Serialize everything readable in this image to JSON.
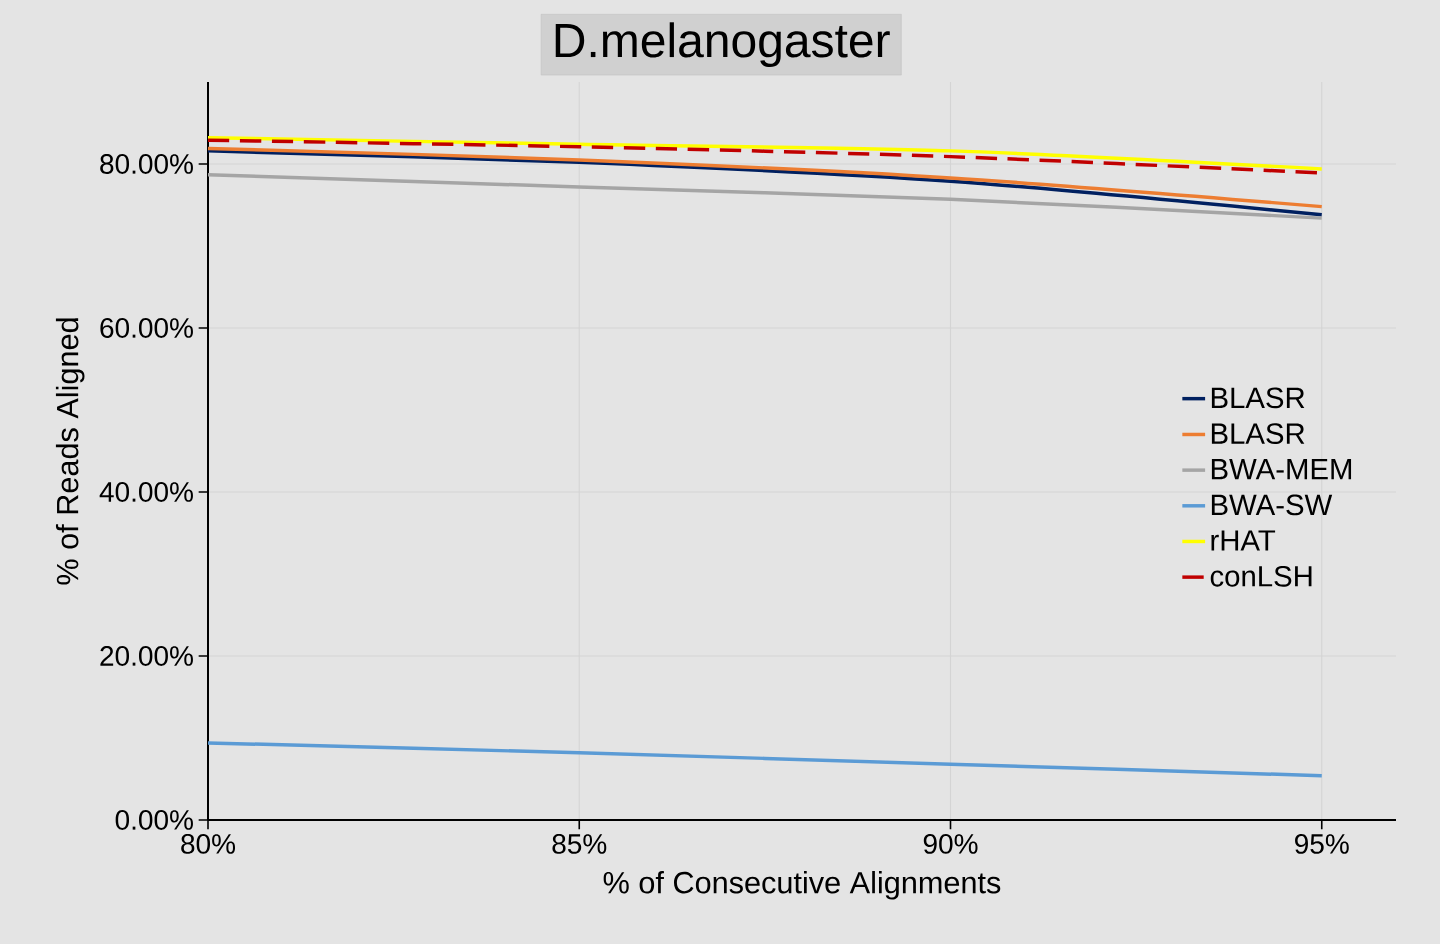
{
  "chart_data": {
    "type": "line",
    "title": "D.melanogaster",
    "xlabel": "% of Consecutive Alignments",
    "ylabel": "% of Reads Aligned",
    "x": [
      80,
      85,
      90,
      95
    ],
    "series": [
      {
        "name": "BLASR",
        "color": "#002060",
        "values": [
          81.6,
          80.2,
          77.9,
          73.8
        ]
      },
      {
        "name": "BLASR",
        "color": "#ed7d31",
        "values": [
          81.9,
          80.5,
          78.3,
          74.8
        ]
      },
      {
        "name": "BWA-MEM",
        "color": "#a5a5a5",
        "values": [
          78.7,
          77.2,
          75.7,
          73.4
        ]
      },
      {
        "name": "BWA-SW",
        "color": "#5b9bd5",
        "values": [
          9.4,
          8.2,
          6.8,
          5.4
        ]
      },
      {
        "name": "rHAT",
        "color": "#ffff00",
        "values": [
          83.2,
          82.4,
          81.6,
          79.4
        ]
      },
      {
        "name": "conLSH",
        "color": "#c00000",
        "values": [
          82.9,
          82.1,
          80.9,
          78.9
        ],
        "line_style": "dashed"
      }
    ],
    "xlim": [
      80,
      96
    ],
    "xticks": [
      {
        "value": 80,
        "label": "80%"
      },
      {
        "value": 85,
        "label": "85%"
      },
      {
        "value": 90,
        "label": "90%"
      },
      {
        "value": 95,
        "label": "95%"
      }
    ],
    "ylim": [
      0,
      90
    ],
    "yticks": [
      {
        "value": 0,
        "label": "0.00%"
      },
      {
        "value": 20,
        "label": "20.00%"
      },
      {
        "value": 40,
        "label": "40.00%"
      },
      {
        "value": 60,
        "label": "60.00%"
      },
      {
        "value": 80,
        "label": "80.00%"
      }
    ],
    "grid": true,
    "legend": "right",
    "marker": "none"
  }
}
